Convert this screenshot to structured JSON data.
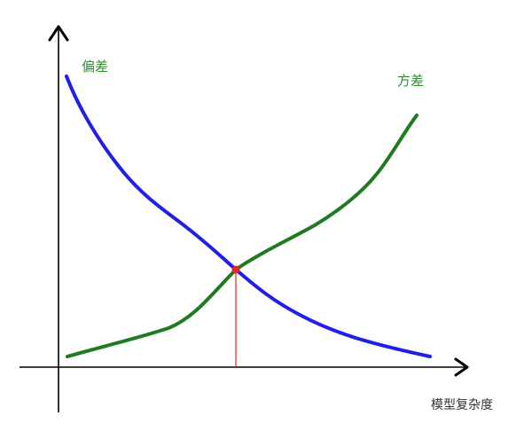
{
  "labels": {
    "bias": "偏差",
    "variance": "方差",
    "x_axis": "模型复杂度"
  },
  "colors": {
    "bias": "#1f1fe6",
    "variance": "#207a20",
    "intersection": "#ee2222",
    "axis": "#000000",
    "label_text": "#2e8b2e"
  },
  "curve_shapes": {
    "bias": "decreasing",
    "variance": "increasing"
  }
}
